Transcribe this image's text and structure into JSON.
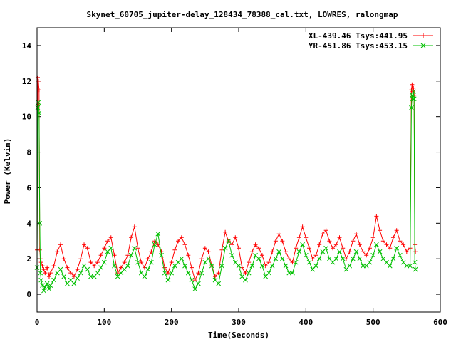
{
  "chart_data": {
    "type": "line",
    "title": "Skynet_60705_jupiter-delay_128434_78388_cal.txt, LOWRES, ralongmap",
    "xlabel": "Time(Seconds)",
    "ylabel": "Power (Kelvin)",
    "xlim": [
      0,
      600
    ],
    "ylim": [
      -1,
      15
    ],
    "xticks": [
      0,
      100,
      200,
      300,
      400,
      500,
      600
    ],
    "yticks": [
      0,
      2,
      4,
      6,
      8,
      10,
      12,
      14
    ],
    "grid": false,
    "legend_position": "top-right",
    "series": [
      {
        "name": "XL-439.46 Tsys:441.95",
        "color": "#ff0000",
        "marker": "+",
        "x": [
          0,
          1,
          2,
          3,
          4,
          5,
          6,
          8,
          10,
          12,
          15,
          18,
          20,
          25,
          30,
          35,
          40,
          45,
          50,
          55,
          60,
          65,
          70,
          75,
          80,
          85,
          90,
          95,
          100,
          105,
          110,
          115,
          120,
          125,
          130,
          135,
          140,
          145,
          150,
          155,
          160,
          165,
          170,
          175,
          180,
          185,
          190,
          195,
          200,
          205,
          210,
          215,
          220,
          225,
          230,
          235,
          240,
          245,
          250,
          255,
          260,
          265,
          270,
          275,
          280,
          285,
          290,
          295,
          300,
          305,
          310,
          315,
          320,
          325,
          330,
          335,
          340,
          345,
          350,
          355,
          360,
          365,
          370,
          375,
          380,
          385,
          390,
          395,
          400,
          405,
          410,
          415,
          420,
          425,
          430,
          435,
          440,
          445,
          450,
          455,
          460,
          465,
          470,
          475,
          480,
          485,
          490,
          495,
          500,
          505,
          510,
          515,
          520,
          525,
          530,
          535,
          540,
          545,
          550,
          555,
          557,
          558,
          559,
          560,
          561,
          562,
          563
        ],
        "y": [
          2.5,
          12.2,
          12.0,
          11.5,
          2.5,
          2.0,
          1.8,
          1.6,
          1.4,
          1.2,
          1.5,
          1.0,
          1.2,
          1.6,
          2.4,
          2.8,
          2.0,
          1.5,
          1.2,
          1.0,
          1.4,
          2.0,
          2.8,
          2.6,
          1.8,
          1.6,
          1.8,
          2.2,
          2.6,
          3.0,
          3.2,
          2.2,
          1.2,
          1.5,
          1.8,
          2.2,
          3.2,
          3.8,
          2.6,
          1.8,
          1.5,
          2.0,
          2.4,
          3.0,
          2.8,
          2.4,
          1.5,
          1.2,
          1.8,
          2.5,
          3.0,
          3.2,
          2.8,
          2.2,
          1.5,
          0.8,
          1.2,
          2.0,
          2.6,
          2.4,
          1.6,
          1.0,
          1.2,
          2.5,
          3.5,
          3.0,
          2.8,
          3.2,
          2.6,
          1.5,
          1.2,
          1.8,
          2.4,
          2.8,
          2.6,
          2.2,
          1.6,
          1.8,
          2.4,
          3.0,
          3.4,
          3.0,
          2.4,
          2.0,
          1.8,
          2.6,
          3.2,
          3.8,
          3.2,
          2.6,
          2.0,
          2.2,
          2.8,
          3.4,
          3.6,
          3.0,
          2.6,
          2.8,
          3.2,
          2.6,
          2.0,
          2.4,
          3.0,
          3.4,
          2.8,
          2.4,
          2.2,
          2.6,
          3.2,
          4.4,
          3.6,
          3.0,
          2.8,
          2.6,
          3.2,
          3.6,
          3.0,
          2.8,
          2.4,
          2.6,
          11.5,
          11.8,
          11.4,
          11.6,
          11.2,
          2.8,
          2.4
        ]
      },
      {
        "name": "YR-451.86 Tsys:453.15",
        "color": "#00c000",
        "marker": "x",
        "x": [
          0,
          1,
          2,
          3,
          4,
          5,
          6,
          8,
          10,
          12,
          15,
          18,
          20,
          25,
          30,
          35,
          40,
          45,
          50,
          55,
          60,
          65,
          70,
          75,
          80,
          85,
          90,
          95,
          100,
          105,
          110,
          115,
          120,
          125,
          130,
          135,
          140,
          145,
          150,
          155,
          160,
          165,
          170,
          175,
          180,
          185,
          190,
          195,
          200,
          205,
          210,
          215,
          220,
          225,
          230,
          235,
          240,
          245,
          250,
          255,
          260,
          265,
          270,
          275,
          280,
          285,
          290,
          295,
          300,
          305,
          310,
          315,
          320,
          325,
          330,
          335,
          340,
          345,
          350,
          355,
          360,
          365,
          370,
          375,
          380,
          385,
          390,
          395,
          400,
          405,
          410,
          415,
          420,
          425,
          430,
          435,
          440,
          445,
          450,
          455,
          460,
          465,
          470,
          475,
          480,
          485,
          490,
          495,
          500,
          505,
          510,
          515,
          520,
          525,
          530,
          535,
          540,
          545,
          550,
          555,
          557,
          558,
          559,
          560,
          561,
          562,
          563
        ],
        "y": [
          1.5,
          10.5,
          10.8,
          10.2,
          4.0,
          1.2,
          0.8,
          0.5,
          0.2,
          0.4,
          0.6,
          0.3,
          0.5,
          0.8,
          1.2,
          1.4,
          1.0,
          0.6,
          0.8,
          0.6,
          0.9,
          1.2,
          1.6,
          1.4,
          1.0,
          1.0,
          1.2,
          1.5,
          1.8,
          2.4,
          2.6,
          1.6,
          1.0,
          1.2,
          1.4,
          1.6,
          2.2,
          2.6,
          1.8,
          1.2,
          1.0,
          1.4,
          1.8,
          2.8,
          3.4,
          2.2,
          1.2,
          0.8,
          1.2,
          1.6,
          1.8,
          2.0,
          1.6,
          1.2,
          0.8,
          0.3,
          0.6,
          1.2,
          1.8,
          2.0,
          1.6,
          0.8,
          0.6,
          1.6,
          2.6,
          3.0,
          2.2,
          1.8,
          1.6,
          1.0,
          0.8,
          1.2,
          1.6,
          2.2,
          2.0,
          1.6,
          1.0,
          1.2,
          1.6,
          2.0,
          2.4,
          2.0,
          1.6,
          1.2,
          1.2,
          1.8,
          2.4,
          2.8,
          2.2,
          1.8,
          1.4,
          1.6,
          2.0,
          2.4,
          2.6,
          2.0,
          1.8,
          2.0,
          2.4,
          2.0,
          1.4,
          1.6,
          2.0,
          2.4,
          2.0,
          1.6,
          1.6,
          1.8,
          2.2,
          2.8,
          2.4,
          2.0,
          1.8,
          1.6,
          2.0,
          2.6,
          2.2,
          1.8,
          1.6,
          1.6,
          10.5,
          11.2,
          11.0,
          11.4,
          11.0,
          1.8,
          1.4
        ]
      }
    ]
  }
}
